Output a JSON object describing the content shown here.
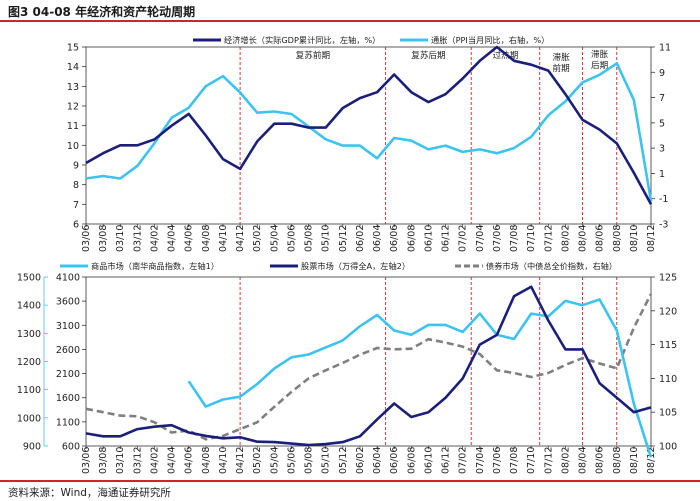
{
  "title": "图3  04-08 年经济和资产轮动周期",
  "source": "资料来源：Wind，海通证券研究所",
  "colors": {
    "dark_blue": "#1b1f7a",
    "light_blue": "#3cc3f0",
    "gray": "#7f7f7f",
    "divider": "#d2232a",
    "accent": "#c8282d"
  },
  "x_labels": [
    "03/06",
    "03/08",
    "03/10",
    "03/12",
    "04/02",
    "04/04",
    "04/06",
    "04/08",
    "04/10",
    "04/12",
    "05/02",
    "05/04",
    "05/06",
    "05/08",
    "05/10",
    "05/12",
    "06/02",
    "06/04",
    "06/06",
    "06/08",
    "06/10",
    "06/12",
    "07/02",
    "07/04",
    "07/06",
    "07/08",
    "07/10",
    "07/12",
    "08/02",
    "08/04",
    "08/06",
    "08/08",
    "08/10",
    "08/12"
  ],
  "chart_data": [
    {
      "type": "line",
      "legend": [
        "经济增长（实际GDP累计同比，左轴，%）",
        "通胀（PPI当月同比，右轴，%）"
      ],
      "phases": [
        "复苏前期",
        "复苏后期",
        "过热期",
        "滞胀前期",
        "滞胀后期"
      ],
      "phase_lines_at": [
        9,
        17.5,
        22.5,
        26.5,
        29,
        31
      ],
      "left_axis": {
        "ylim": [
          6,
          15
        ],
        "ticks": [
          6,
          7,
          8,
          9,
          10,
          11,
          12,
          13,
          14,
          15
        ]
      },
      "right_axis": {
        "ylim": [
          -3,
          11
        ],
        "ticks": [
          -3,
          -1,
          1,
          3,
          5,
          7,
          9,
          11
        ]
      },
      "series": [
        {
          "name": "经济增长",
          "axis": "left",
          "values": [
            9.1,
            9.6,
            10.0,
            10.0,
            10.3,
            11.0,
            11.6,
            10.5,
            9.3,
            8.8,
            10.2,
            11.1,
            11.1,
            10.9,
            10.9,
            11.9,
            12.4,
            12.7,
            13.6,
            12.7,
            12.2,
            12.6,
            13.4,
            14.3,
            15.0,
            14.3,
            14.1,
            13.8,
            12.6,
            11.3,
            10.8,
            10.1,
            8.6,
            7.0
          ]
        },
        {
          "name": "通胀",
          "axis": "right",
          "values": [
            0.6,
            0.8,
            0.6,
            1.6,
            3.4,
            5.4,
            6.2,
            7.9,
            8.7,
            7.4,
            5.8,
            5.9,
            5.7,
            4.7,
            3.7,
            3.2,
            3.2,
            2.2,
            3.8,
            3.6,
            2.9,
            3.2,
            2.7,
            2.9,
            2.6,
            3.0,
            3.9,
            5.6,
            6.7,
            8.2,
            8.8,
            9.7,
            6.8,
            -1.2
          ]
        }
      ]
    },
    {
      "type": "line",
      "legend": [
        "商品市场（南华商品指数，左轴1）",
        "股票市场（万得全A，左轴2）",
        "债券市场（中债总全价指数，右轴）"
      ],
      "phase_lines_at": [
        9,
        17.5,
        22.5,
        26.5,
        29,
        31
      ],
      "axis1": {
        "ylim": [
          900,
          1500
        ],
        "ticks": [
          900,
          1000,
          1100,
          1200,
          1300,
          1400,
          1500
        ]
      },
      "axis2": {
        "ylim": [
          600,
          4100
        ],
        "ticks": [
          600,
          1100,
          1600,
          2100,
          2600,
          3100,
          3600,
          4100
        ]
      },
      "right_axis": {
        "ylim": [
          100,
          125
        ],
        "ticks": [
          100,
          105,
          110,
          115,
          120,
          125
        ]
      },
      "series": [
        {
          "name": "商品市场",
          "axis": "axis1",
          "values": [
            null,
            null,
            null,
            null,
            null,
            null,
            1130,
            1040,
            1065,
            1075,
            1120,
            1175,
            1215,
            1225,
            1250,
            1275,
            1325,
            1365,
            1310,
            1295,
            1330,
            1330,
            1305,
            1370,
            1295,
            1280,
            1370,
            1360,
            1415,
            1400,
            1420,
            1310,
            1050,
            860
          ]
        },
        {
          "name": "股票市场",
          "axis": "axis2",
          "values": [
            860,
            800,
            800,
            950,
            1000,
            1030,
            880,
            810,
            760,
            780,
            690,
            680,
            650,
            620,
            640,
            680,
            800,
            1150,
            1480,
            1200,
            1300,
            1600,
            2000,
            2700,
            2900,
            3700,
            3900,
            3200,
            2600,
            2600,
            1900,
            1600,
            1300,
            1400
          ]
        },
        {
          "name": "债券市场",
          "axis": "right",
          "values": [
            105.5,
            105.0,
            104.5,
            104.4,
            103.5,
            102.0,
            102.3,
            101.0,
            101.5,
            102.5,
            103.5,
            105.8,
            108.0,
            110.0,
            111.2,
            112.3,
            113.5,
            114.5,
            114.3,
            114.4,
            115.8,
            115.3,
            114.7,
            113.6,
            111.2,
            110.8,
            110.2,
            110.8,
            112.0,
            113.0,
            112.2,
            111.5,
            117.5,
            122.5
          ]
        }
      ]
    }
  ]
}
